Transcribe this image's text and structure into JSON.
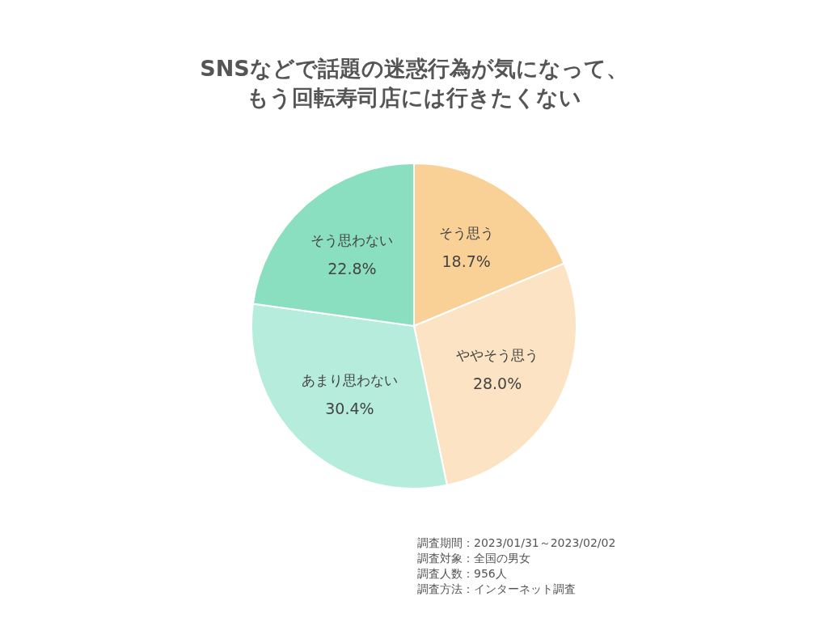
{
  "chart_data": {
    "type": "pie",
    "title": "SNSなどで話題の迷惑行為が気になって、",
    "subtitle": "もう回転寿司店には行きたくない",
    "categories": [
      "そう思う",
      "ややそう思う",
      "あまり思わない",
      "そう思わない"
    ],
    "values": [
      18.7,
      28.0,
      30.4,
      22.8
    ],
    "value_labels": [
      "18.7%",
      "28.0%",
      "30.4%",
      "22.8%"
    ],
    "colors": [
      "#f9d197",
      "#fbe3c3",
      "#b5ecdb",
      "#8adfc1"
    ],
    "legend": false,
    "annotations": [
      "調査期間：2023/01/31～2023/02/02",
      "調査対象：全国の男女",
      "調査人数：956人",
      "調査方法：インターネット調査"
    ]
  }
}
